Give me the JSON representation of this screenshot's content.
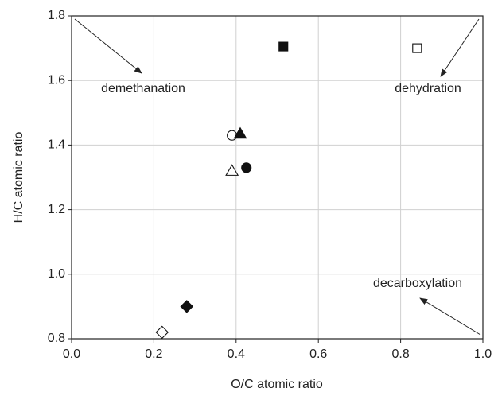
{
  "chart_data": {
    "type": "scatter",
    "xlabel": "O/C atomic ratio",
    "ylabel": "H/C atomic ratio",
    "xlim": [
      0,
      1
    ],
    "ylim": [
      0.8,
      1.8
    ],
    "xticks": [
      {
        "value": 0,
        "label": "0.0"
      },
      0.2,
      0.4,
      0.6,
      0.8,
      {
        "value": 1,
        "label": "1.0"
      }
    ],
    "yticks": [
      0.8,
      {
        "value": 1,
        "label": "1.0"
      },
      1.2,
      1.4,
      1.6,
      1.8
    ],
    "grid": true,
    "color": "#111111",
    "x": [
      0.515,
      0.84,
      0.39,
      0.41,
      0.39,
      0.425,
      0.28,
      0.22
    ],
    "values": [
      1.705,
      1.7,
      1.43,
      1.435,
      1.32,
      1.33,
      0.9,
      0.82
    ],
    "markers": [
      "square",
      "square",
      "circle",
      "triangle",
      "triangle",
      "circle",
      "diamond",
      "diamond"
    ],
    "filled": [
      true,
      false,
      false,
      true,
      false,
      true,
      true,
      false
    ],
    "annotations": [
      "demethanation",
      "dehydration",
      "decarboxylation"
    ]
  }
}
